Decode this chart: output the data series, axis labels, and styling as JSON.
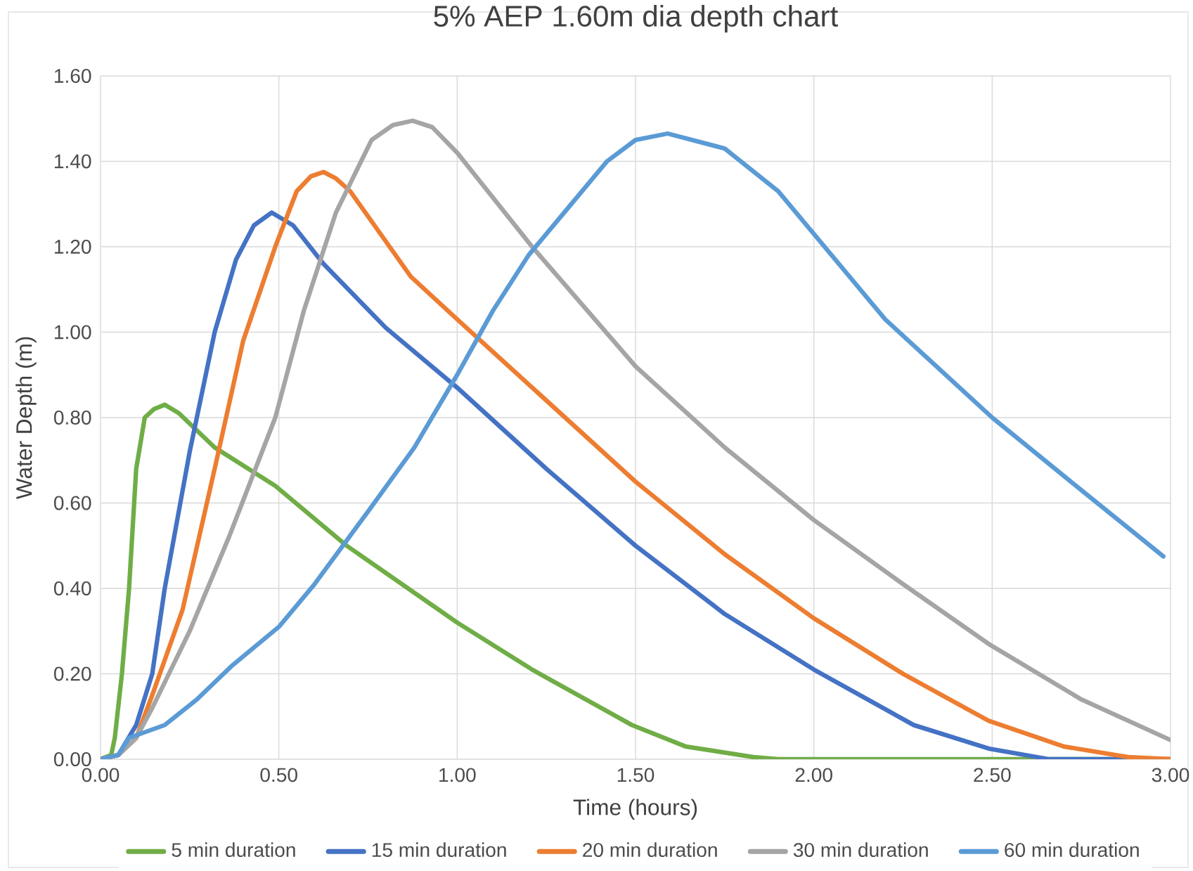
{
  "chart_data": {
    "type": "line",
    "title": "5% AEP 1.60m dia depth chart",
    "xlabel": "Time (hours)",
    "ylabel": "Water Depth (m)",
    "xlim": [
      0,
      3
    ],
    "ylim": [
      0,
      1.6
    ],
    "xticks": [
      {
        "value": 0,
        "label": "0.00"
      },
      {
        "value": 0.5,
        "label": "0.50"
      },
      {
        "value": 1,
        "label": "1.00"
      },
      {
        "value": 1.5,
        "label": "1.50"
      },
      {
        "value": 2,
        "label": "2.00"
      },
      {
        "value": 2.5,
        "label": "2.50"
      },
      {
        "value": 3,
        "label": "3.00"
      }
    ],
    "yticks": [
      {
        "value": 0,
        "label": "0.00"
      },
      {
        "value": 0.2,
        "label": "0.20"
      },
      {
        "value": 0.4,
        "label": "0.40"
      },
      {
        "value": 0.6,
        "label": "0.60"
      },
      {
        "value": 0.8,
        "label": "0.80"
      },
      {
        "value": 1,
        "label": "1.00"
      },
      {
        "value": 1.2,
        "label": "1.20"
      },
      {
        "value": 1.4,
        "label": "1.40"
      },
      {
        "value": 1.6,
        "label": "1.60"
      }
    ],
    "grid": true,
    "legend": "bottom",
    "marker": "none",
    "line_style": "solid",
    "series": [
      {
        "name": "5 min duration",
        "color": "#70ad47",
        "x": [
          0,
          0.03,
          0.04,
          0.06,
          0.08,
          0.1,
          0.124,
          0.15,
          0.18,
          0.22,
          0.32,
          0.49,
          0.69,
          1.0,
          1.21,
          1.49,
          1.64,
          1.83,
          1.9,
          3.0
        ],
        "values": [
          0,
          0.01,
          0.05,
          0.2,
          0.4,
          0.68,
          0.8,
          0.82,
          0.83,
          0.81,
          0.73,
          0.64,
          0.5,
          0.32,
          0.21,
          0.08,
          0.03,
          0.005,
          0,
          0
        ]
      },
      {
        "name": "15 min duration",
        "color": "#4472c4",
        "x": [
          0,
          0.05,
          0.1,
          0.145,
          0.18,
          0.25,
          0.32,
          0.38,
          0.43,
          0.48,
          0.54,
          0.625,
          0.8,
          1.0,
          1.25,
          1.5,
          1.75,
          2.0,
          2.28,
          2.49,
          2.66,
          3.0
        ],
        "values": [
          0,
          0.01,
          0.08,
          0.2,
          0.4,
          0.72,
          1.0,
          1.17,
          1.25,
          1.28,
          1.25,
          1.16,
          1.01,
          0.87,
          0.68,
          0.5,
          0.34,
          0.21,
          0.08,
          0.025,
          0,
          0
        ]
      },
      {
        "name": "20 min duration",
        "color": "#ed7d31",
        "x": [
          0,
          0.05,
          0.1,
          0.145,
          0.23,
          0.32,
          0.4,
          0.49,
          0.55,
          0.59,
          0.625,
          0.66,
          0.7,
          0.87,
          1.0,
          1.25,
          1.5,
          1.75,
          2.0,
          2.25,
          2.49,
          2.7,
          2.88,
          3.0
        ],
        "values": [
          0,
          0.01,
          0.05,
          0.15,
          0.35,
          0.68,
          0.98,
          1.2,
          1.33,
          1.365,
          1.375,
          1.36,
          1.33,
          1.13,
          1.03,
          0.84,
          0.65,
          0.48,
          0.33,
          0.2,
          0.09,
          0.03,
          0.005,
          0
        ]
      },
      {
        "name": "30 min duration",
        "color": "#a5a5a5",
        "x": [
          0,
          0.05,
          0.1,
          0.145,
          0.25,
          0.36,
          0.49,
          0.57,
          0.66,
          0.76,
          0.82,
          0.875,
          0.93,
          1.0,
          1.21,
          1.5,
          1.75,
          2.0,
          2.25,
          2.49,
          2.75,
          3.0
        ],
        "values": [
          0,
          0.01,
          0.05,
          0.12,
          0.3,
          0.52,
          0.8,
          1.05,
          1.28,
          1.45,
          1.485,
          1.495,
          1.48,
          1.42,
          1.2,
          0.92,
          0.73,
          0.56,
          0.41,
          0.27,
          0.14,
          0.045
        ]
      },
      {
        "name": "60 min duration",
        "color": "#5b9bd5",
        "x": [
          0,
          0.05,
          0.08,
          0.18,
          0.27,
          0.37,
          0.5,
          0.6,
          0.75,
          0.88,
          1.0,
          1.1,
          1.2,
          1.3,
          1.42,
          1.5,
          1.59,
          1.75,
          1.9,
          2.0,
          2.2,
          2.5,
          2.75,
          2.98
        ],
        "values": [
          0,
          0.01,
          0.05,
          0.08,
          0.14,
          0.22,
          0.31,
          0.41,
          0.58,
          0.73,
          0.9,
          1.05,
          1.18,
          1.28,
          1.4,
          1.45,
          1.465,
          1.43,
          1.33,
          1.23,
          1.03,
          0.8,
          0.63,
          0.475
        ]
      }
    ]
  }
}
